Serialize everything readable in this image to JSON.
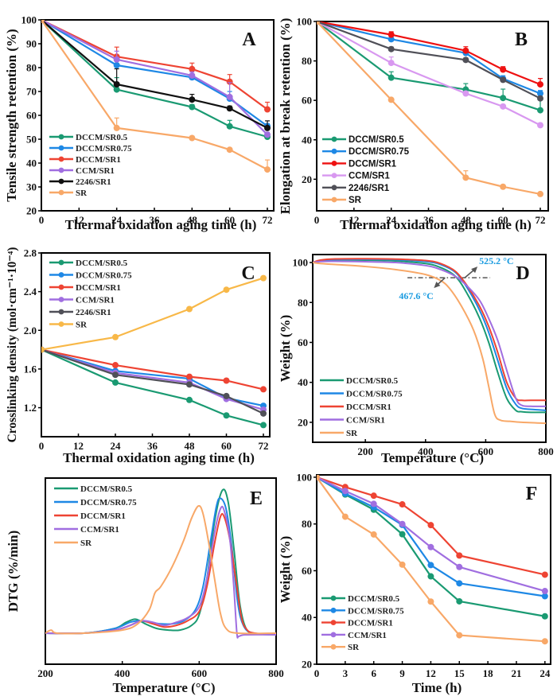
{
  "colors": {
    "DCCM/SR0.5": "#1a9a72",
    "DCCM/SR0.75": "#1e88e5",
    "DCCM/SR1": "#ee4433",
    "CCM/SR1": "#a06ee0",
    "2246/SR1": "#505058",
    "SR": "#f8a868",
    "DCCM/SR1_B": "#ee1111",
    "CCM/SR1_B": "#d898f0",
    "2246/SR1_A": "#111111",
    "SR_C": "#f8b848"
  },
  "chart_data": [
    {
      "panel": "A",
      "type": "line",
      "xlabel": "Thermal oxidation aging time (h)",
      "ylabel": "Tensile strength retention (%)",
      "xlim": [
        0,
        72
      ],
      "ylim": [
        20,
        100
      ],
      "xticks": [
        0,
        12,
        24,
        36,
        48,
        60,
        72
      ],
      "yticks": [
        20,
        30,
        40,
        50,
        60,
        70,
        80,
        90,
        100
      ],
      "legend_position": "bottom-left",
      "x": [
        0,
        24,
        48,
        60,
        72
      ],
      "series": [
        {
          "name": "DCCM/SR0.5",
          "values": [
            100,
            70.8,
            63.5,
            55.4,
            51.0
          ],
          "errors": [
            0,
            5,
            1,
            2.5,
            0.8
          ],
          "color_key": "DCCM/SR0.5"
        },
        {
          "name": "DCCM/SR0.75",
          "values": [
            100,
            81.0,
            75.9,
            67.0,
            55.5
          ],
          "errors": [
            0,
            2,
            1,
            3,
            1
          ],
          "color_key": "DCCM/SR0.75"
        },
        {
          "name": "DCCM/SR1",
          "values": [
            100,
            84.6,
            79.4,
            74.1,
            62.5
          ],
          "errors": [
            0,
            4,
            2.5,
            3,
            3
          ],
          "color_key": "DCCM/SR1"
        },
        {
          "name": "CCM/SR1",
          "values": [
            100,
            83.4,
            76.7,
            67.7,
            51.9
          ],
          "errors": [
            0,
            3.5,
            1.5,
            6,
            1
          ],
          "color_key": "CCM/SR1"
        },
        {
          "name": "2246/SR1",
          "values": [
            100,
            73.0,
            66.6,
            62.9,
            54.7
          ],
          "errors": [
            0,
            6.5,
            2.2,
            1,
            3
          ],
          "color_key": "2246/SR1_A"
        },
        {
          "name": "SR",
          "values": [
            100,
            54.7,
            50.5,
            45.6,
            37.3
          ],
          "errors": [
            0,
            4.2,
            0.5,
            0.6,
            4
          ],
          "color_key": "SR"
        }
      ]
    },
    {
      "panel": "B",
      "type": "line",
      "xlabel": "Thermal oxidation aging time (h)",
      "ylabel": "Elongation at break retention (%)",
      "xlim": [
        0,
        72
      ],
      "ylim": [
        4,
        100
      ],
      "xticks": [
        0,
        12,
        24,
        36,
        48,
        60,
        72
      ],
      "yticks": [
        20,
        40,
        60,
        80,
        100
      ],
      "legend_position": "bottom-left",
      "x": [
        0,
        24,
        48,
        60,
        72
      ],
      "series": [
        {
          "name": "DCCM/SR0.5",
          "values": [
            100,
            71.5,
            65.5,
            61.2,
            55.0
          ],
          "errors": [
            0,
            3,
            3,
            4.5,
            6
          ],
          "color_key": "DCCM/SR0.5"
        },
        {
          "name": "DCCM/SR0.75",
          "values": [
            100,
            91.0,
            84.0,
            71.0,
            63.5
          ],
          "errors": [
            0,
            1.5,
            1.5,
            1.5,
            1.5
          ],
          "color_key": "DCCM/SR0.75"
        },
        {
          "name": "DCCM/SR1",
          "values": [
            100,
            93.3,
            85.2,
            75.6,
            68.1
          ],
          "errors": [
            0,
            1.5,
            2,
            1.5,
            3
          ],
          "color_key": "DCCM/SR1_B"
        },
        {
          "name": "CCM/SR1",
          "values": [
            100,
            79.0,
            63.5,
            56.9,
            47.4
          ],
          "errors": [
            0,
            3,
            1,
            1,
            1
          ],
          "color_key": "CCM/SR1_B"
        },
        {
          "name": "2246/SR1",
          "values": [
            100,
            86.0,
            80.5,
            70.4,
            61.0
          ],
          "errors": [
            0,
            1,
            1,
            1,
            1
          ],
          "color_key": "2246/SR1"
        },
        {
          "name": "SR",
          "values": [
            100,
            60.3,
            20.8,
            16.2,
            12.5
          ],
          "errors": [
            0,
            0.5,
            3.5,
            0.5,
            0.5
          ],
          "color_key": "SR"
        }
      ]
    },
    {
      "panel": "C",
      "type": "line",
      "xlabel": "Thermal oxidation aging time (h)",
      "ylabel": "Crosslinking density (mol·cm⁻¹·10⁻⁴)",
      "xlim": [
        0,
        72
      ],
      "ylim": [
        0.9,
        2.8
      ],
      "xticks": [
        0,
        12,
        24,
        36,
        48,
        60,
        72
      ],
      "yticks": [
        1.2,
        1.6,
        2.0,
        2.4,
        2.8
      ],
      "legend_position": "top-left",
      "x": [
        0,
        24,
        48,
        60,
        72
      ],
      "series": [
        {
          "name": "DCCM/SR0.5",
          "values": [
            1.8,
            1.46,
            1.28,
            1.12,
            1.02
          ],
          "color_key": "DCCM/SR0.5"
        },
        {
          "name": "DCCM/SR0.75",
          "values": [
            1.8,
            1.58,
            1.5,
            1.3,
            1.22
          ],
          "color_key": "DCCM/SR0.75"
        },
        {
          "name": "DCCM/SR1",
          "values": [
            1.8,
            1.64,
            1.52,
            1.48,
            1.39
          ],
          "color_key": "DCCM/SR1"
        },
        {
          "name": "CCM/SR1",
          "values": [
            1.8,
            1.56,
            1.46,
            1.29,
            1.18
          ],
          "color_key": "CCM/SR1"
        },
        {
          "name": "2246/SR1",
          "values": [
            1.8,
            1.54,
            1.44,
            1.32,
            1.14
          ],
          "color_key": "2246/SR1"
        },
        {
          "name": "SR",
          "values": [
            1.8,
            1.93,
            2.22,
            2.42,
            2.54
          ],
          "color_key": "SR_C"
        }
      ]
    },
    {
      "panel": "D",
      "type": "line",
      "xlabel": "Temperature (°C)",
      "ylabel": "Weight (%)",
      "xlim": [
        25,
        800
      ],
      "ylim": [
        10,
        104
      ],
      "xticks": [
        200,
        400,
        600,
        800
      ],
      "yticks": [
        20,
        40,
        60,
        80,
        100
      ],
      "legend_position": "bottom-left",
      "annotations": [
        {
          "text": "525.2 °C",
          "x": 525.2,
          "y": 92.4
        },
        {
          "text": "467.6 °C",
          "x": 467.6,
          "y": 92.4
        }
      ],
      "reference_line_y": 92.4,
      "series": [
        {
          "name": "DCCM/SR0.5",
          "color_key": "DCCM/SR0.5",
          "x": [
            25,
            50,
            100,
            200,
            300,
            400,
            450,
            500,
            540,
            580,
            610,
            640,
            670,
            700,
            720,
            750,
            800
          ],
          "values": [
            100,
            101,
            101.3,
            101.2,
            100.8,
            99.5,
            97.5,
            93,
            84,
            72,
            60,
            45,
            32,
            26,
            25.3,
            25,
            25
          ]
        },
        {
          "name": "DCCM/SR0.75",
          "color_key": "DCCM/SR0.75",
          "x": [
            25,
            50,
            100,
            200,
            300,
            400,
            450,
            500,
            540,
            580,
            610,
            640,
            670,
            700,
            720,
            750,
            800
          ],
          "values": [
            100,
            101,
            101.5,
            101.6,
            101.4,
            100.5,
            99,
            95,
            87,
            76,
            65,
            51,
            37,
            29,
            27,
            26.5,
            26
          ]
        },
        {
          "name": "DCCM/SR1",
          "color_key": "DCCM/SR1",
          "x": [
            25,
            50,
            100,
            200,
            300,
            400,
            450,
            500,
            540,
            580,
            610,
            640,
            670,
            700,
            720,
            750,
            800
          ],
          "values": [
            100,
            101.2,
            101.8,
            101.9,
            101.7,
            101,
            99.5,
            95.5,
            88,
            78,
            68,
            55,
            40,
            32,
            31,
            31,
            31
          ]
        },
        {
          "name": "CCM/SR1",
          "color_key": "CCM/SR1",
          "x": [
            25,
            50,
            100,
            200,
            300,
            400,
            450,
            500,
            540,
            580,
            610,
            640,
            670,
            700,
            720,
            750,
            800
          ],
          "values": [
            100,
            100.5,
            100.6,
            100.4,
            100,
            98.5,
            96.5,
            93,
            88,
            81,
            72,
            61,
            46,
            32,
            28.5,
            28,
            28
          ]
        },
        {
          "name": "SR",
          "color_key": "SR",
          "x": [
            25,
            50,
            100,
            200,
            300,
            400,
            450,
            480,
            520,
            560,
            590,
            610,
            630,
            650,
            680,
            720,
            800
          ],
          "values": [
            100,
            99.5,
            99,
            98,
            96.5,
            94,
            91,
            87,
            78,
            66,
            52,
            38,
            24,
            21,
            20.5,
            20,
            19.5
          ]
        }
      ]
    },
    {
      "panel": "E",
      "type": "line",
      "xlabel": "Temperature (°C)",
      "ylabel": "DTG (%/min)",
      "xlim": [
        200,
        800
      ],
      "ylim": [
        -0.2,
        1.0
      ],
      "xticks": [
        200,
        400,
        600,
        800
      ],
      "yticks": [],
      "legend_position": "top-left",
      "series": [
        {
          "name": "DCCM/SR0.5",
          "color_key": "DCCM/SR0.5",
          "x": [
            200,
            300,
            380,
            410,
            435,
            460,
            490,
            520,
            550,
            580,
            600,
            620,
            640,
            660,
            675,
            690,
            705,
            720,
            740,
            800
          ],
          "values": [
            0,
            0,
            0.03,
            0.07,
            0.09,
            0.06,
            0.03,
            0.02,
            0.02,
            0.05,
            0.12,
            0.35,
            0.72,
            0.92,
            0.85,
            0.55,
            0.2,
            0.04,
            0.0,
            -0.01
          ]
        },
        {
          "name": "DCCM/SR0.75",
          "color_key": "DCCM/SR0.75",
          "x": [
            200,
            300,
            380,
            420,
            445,
            470,
            500,
            530,
            560,
            590,
            610,
            630,
            645,
            655,
            670,
            685,
            700,
            715,
            740,
            800
          ],
          "values": [
            0,
            0,
            0.03,
            0.07,
            0.08,
            0.07,
            0.06,
            0.06,
            0.08,
            0.15,
            0.3,
            0.6,
            0.82,
            0.87,
            0.8,
            0.55,
            0.2,
            0.05,
            0.0,
            -0.01
          ]
        },
        {
          "name": "DCCM/SR1",
          "color_key": "DCCM/SR1",
          "x": [
            200,
            300,
            380,
            420,
            450,
            480,
            510,
            540,
            570,
            600,
            620,
            640,
            655,
            665,
            680,
            695,
            710,
            725,
            745,
            800
          ],
          "values": [
            0,
            0,
            0.02,
            0.05,
            0.08,
            0.06,
            0.04,
            0.05,
            0.08,
            0.14,
            0.3,
            0.58,
            0.75,
            0.75,
            0.6,
            0.35,
            0.1,
            0.02,
            0.0,
            -0.01
          ]
        },
        {
          "name": "CCM/SR1",
          "color_key": "CCM/SR1",
          "x": [
            200,
            300,
            380,
            420,
            450,
            480,
            510,
            540,
            570,
            600,
            620,
            640,
            655,
            665,
            680,
            690,
            698,
            703,
            720,
            800
          ],
          "values": [
            0,
            0,
            0.02,
            0.05,
            0.08,
            0.07,
            0.05,
            0.07,
            0.1,
            0.17,
            0.35,
            0.65,
            0.8,
            0.79,
            0.6,
            0.3,
            0.0,
            -0.02,
            -0.01,
            -0.01
          ]
        },
        {
          "name": "SR",
          "color_key": "SR",
          "x": [
            200,
            215,
            230,
            300,
            400,
            440,
            470,
            485,
            500,
            530,
            560,
            580,
            598,
            610,
            625,
            640,
            655,
            670,
            700,
            800
          ],
          "values": [
            0,
            0.02,
            0,
            0,
            0.02,
            0.06,
            0.15,
            0.26,
            0.3,
            0.43,
            0.6,
            0.74,
            0.82,
            0.77,
            0.58,
            0.35,
            0.13,
            0.03,
            0.0,
            0.0
          ]
        }
      ]
    },
    {
      "panel": "F",
      "type": "line",
      "xlabel": "Time (h)",
      "ylabel": "Weight (%)",
      "xlim": [
        0,
        24.6
      ],
      "ylim": [
        20,
        101
      ],
      "xticks": [
        0,
        3,
        6,
        9,
        12,
        15,
        18,
        21,
        24
      ],
      "yticks": [
        20,
        40,
        60,
        80,
        100
      ],
      "legend_position": "bottom-left",
      "x": [
        0,
        3,
        6,
        9,
        12,
        15,
        24
      ],
      "series": [
        {
          "name": "DCCM/SR0.5",
          "values": [
            100,
            92.6,
            86.1,
            75.6,
            57.6,
            46.9,
            40.5
          ],
          "color_key": "DCCM/SR0.5"
        },
        {
          "name": "DCCM/SR0.75",
          "values": [
            100,
            93.0,
            87.2,
            79.6,
            62.4,
            54.6,
            49.1
          ],
          "color_key": "DCCM/SR0.75"
        },
        {
          "name": "DCCM/SR1",
          "values": [
            100,
            95.8,
            92.1,
            88.4,
            79.5,
            66.5,
            58.3
          ],
          "color_key": "DCCM/SR1"
        },
        {
          "name": "CCM/SR1",
          "values": [
            100,
            94.1,
            88.6,
            80.0,
            70.1,
            61.6,
            51.3
          ],
          "color_key": "CCM/SR1"
        },
        {
          "name": "SR",
          "values": [
            100,
            83.1,
            75.5,
            62.6,
            46.8,
            32.4,
            29.8
          ],
          "color_key": "SR"
        }
      ]
    }
  ]
}
